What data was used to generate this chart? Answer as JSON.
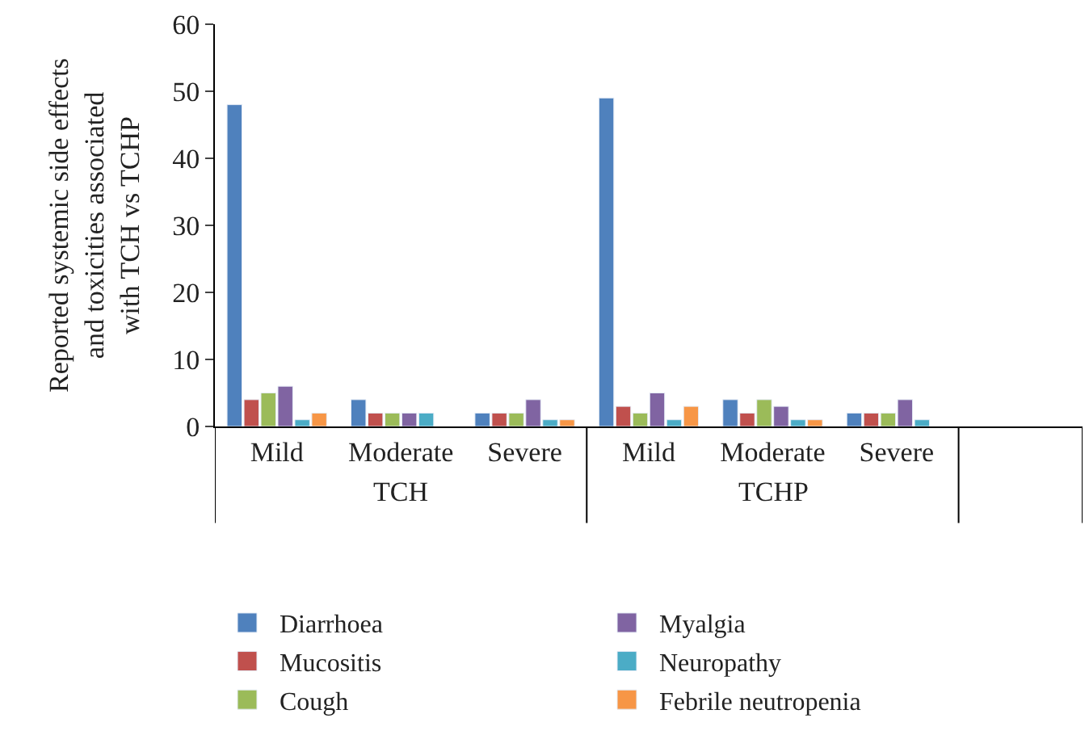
{
  "chart_data": {
    "type": "bar",
    "ylabel": "Reported systemic side effects\nand toxicities associated\nwith TCH vs TCHP",
    "categories": [
      "Mild",
      "Moderate",
      "Severe",
      "Mild",
      "Moderate",
      "Severe",
      null
    ],
    "annotations": [
      "TCH",
      "TCHP"
    ],
    "series": [
      {
        "name": "Diarrhoea",
        "color": "#4f81bd",
        "values": [
          48,
          4,
          2,
          49,
          4,
          2,
          null
        ]
      },
      {
        "name": "Mucositis",
        "color": "#c0504d",
        "values": [
          4,
          2,
          2,
          3,
          2,
          2,
          null
        ]
      },
      {
        "name": "Cough",
        "color": "#9bbb59",
        "values": [
          5,
          2,
          2,
          2,
          4,
          2,
          null
        ]
      },
      {
        "name": "Myalgia",
        "color": "#8064a2",
        "values": [
          6,
          2,
          4,
          5,
          3,
          4,
          null
        ]
      },
      {
        "name": "Neuropathy",
        "color": "#4bacc6",
        "values": [
          1,
          2,
          1,
          1,
          1,
          1,
          null
        ]
      },
      {
        "name": "Febrile neutropenia",
        "color": "#f79646",
        "values": [
          2,
          null,
          1,
          3,
          1,
          null,
          null
        ]
      }
    ],
    "ylim": [
      0,
      60
    ],
    "yticks": [
      0,
      10,
      20,
      30,
      40,
      50,
      60
    ],
    "legend": "bottom"
  }
}
